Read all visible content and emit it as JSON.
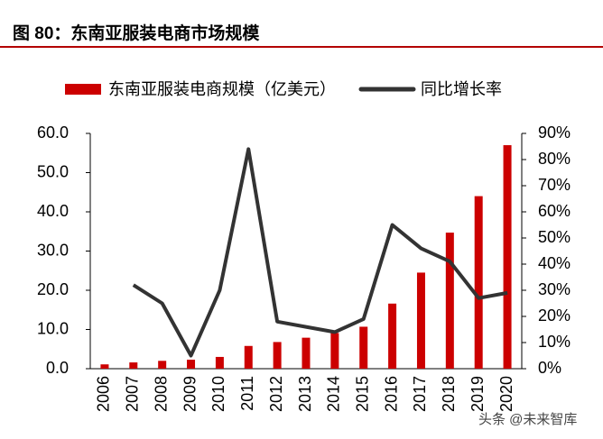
{
  "chart_data": {
    "type": "bar-line",
    "title": "图 80：东南亚服装电商市场规模",
    "categories": [
      "2006",
      "2007",
      "2008",
      "2009",
      "2010",
      "2011",
      "2012",
      "2013",
      "2014",
      "2015",
      "2016",
      "2017",
      "2018",
      "2019",
      "2020"
    ],
    "series": [
      {
        "name": "东南亚服装电商规模（亿美元）",
        "color": "#cc0000",
        "type": "bar",
        "values": [
          1.1,
          1.6,
          2.0,
          2.3,
          3.0,
          5.8,
          6.8,
          7.9,
          9.1,
          10.7,
          16.6,
          24.5,
          34.7,
          44.0,
          57.0
        ]
      },
      {
        "name": "同比增长率",
        "color": "#333333",
        "type": "line",
        "axis": "y2",
        "values": [
          null,
          32,
          25,
          5,
          30,
          84,
          18,
          16,
          14,
          19,
          55,
          46,
          41,
          27,
          29
        ]
      }
    ],
    "ylim": [
      0,
      60
    ],
    "yticks": [
      {
        "value": 0,
        "label": "0.0"
      },
      {
        "value": 10,
        "label": "10.0"
      },
      {
        "value": 20,
        "label": "20.0"
      },
      {
        "value": 30,
        "label": "30.0"
      },
      {
        "value": 40,
        "label": "40.0"
      },
      {
        "value": 50,
        "label": "50.0"
      },
      {
        "value": 60,
        "label": "60.0"
      }
    ],
    "y2lim": [
      0,
      90
    ],
    "y2ticks": [
      {
        "value": 0,
        "label": "0%"
      },
      {
        "value": 10,
        "label": "10%"
      },
      {
        "value": 20,
        "label": "20%"
      },
      {
        "value": 30,
        "label": "30%"
      },
      {
        "value": 40,
        "label": "40%"
      },
      {
        "value": 50,
        "label": "50%"
      },
      {
        "value": 60,
        "label": "60%"
      },
      {
        "value": 70,
        "label": "70%"
      },
      {
        "value": 80,
        "label": "80%"
      },
      {
        "value": 90,
        "label": "90%"
      }
    ],
    "grid": false,
    "watermark": "头条 @未来智库"
  }
}
